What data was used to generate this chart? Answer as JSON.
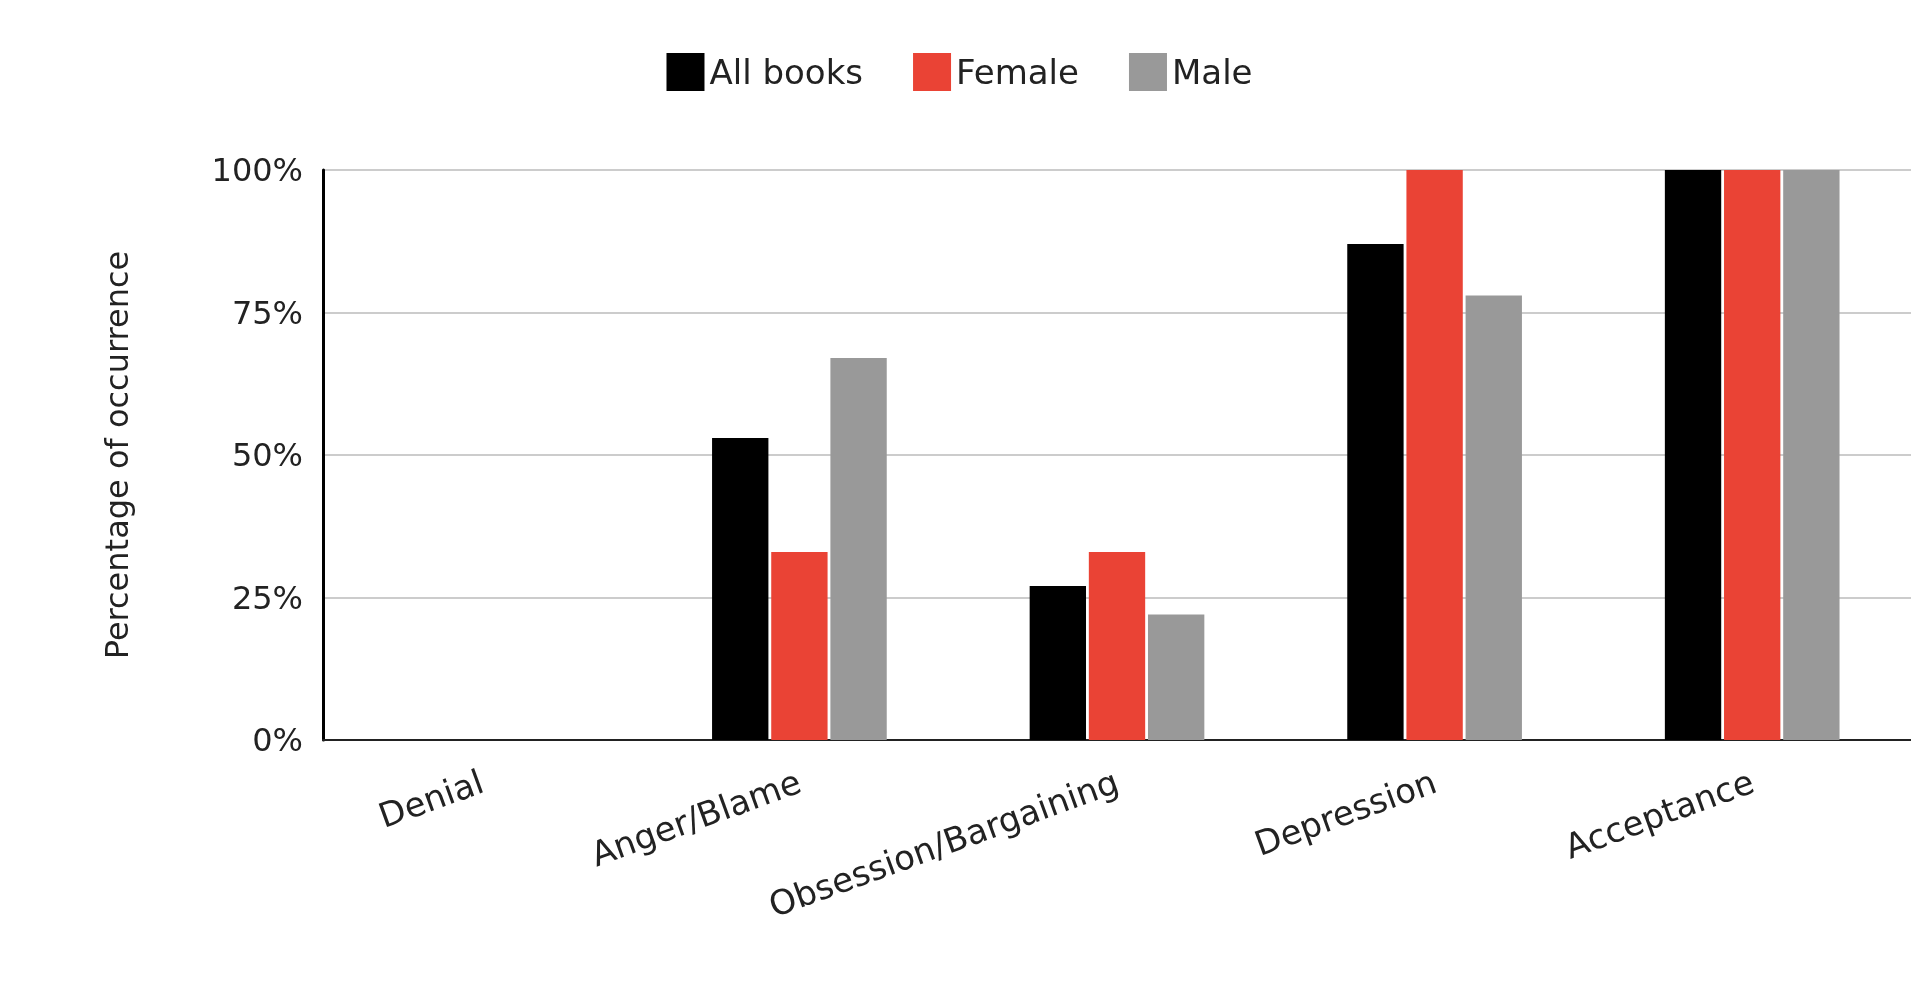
{
  "chart_data": {
    "type": "bar",
    "ylabel": "Percentage of occurrence",
    "categories": [
      "Denial",
      "Anger/Blame",
      "Obsession/Bargaining",
      "Depression",
      "Acceptance"
    ],
    "series": [
      {
        "name": "All books",
        "color": "#000000",
        "values": [
          0,
          53,
          27,
          87,
          100
        ]
      },
      {
        "name": "Female",
        "color": "#ea4335",
        "values": [
          0,
          33,
          33,
          100,
          100
        ]
      },
      {
        "name": "Male",
        "color": "#999999",
        "values": [
          0,
          67,
          22,
          78,
          100
        ]
      }
    ],
    "ylim": [
      0,
      100
    ],
    "yticks": [
      {
        "value": 0,
        "label": "0%"
      },
      {
        "value": 25,
        "label": "25%"
      },
      {
        "value": 50,
        "label": "50%"
      },
      {
        "value": 75,
        "label": "75%"
      },
      {
        "value": 100,
        "label": "100%"
      }
    ],
    "grid": "y",
    "legend": "top"
  }
}
